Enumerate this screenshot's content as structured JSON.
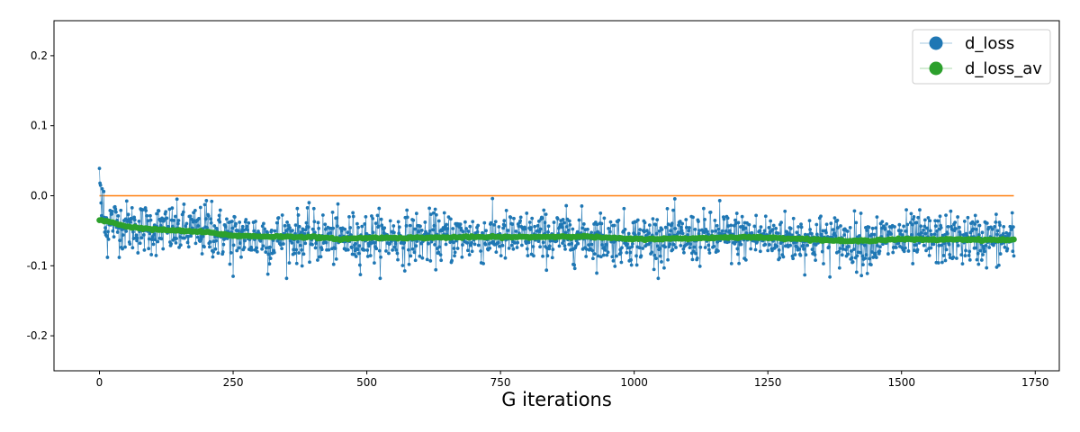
{
  "chart_data": {
    "type": "line",
    "xlabel": "G iterations",
    "ylabel": "",
    "xlim": [
      -85,
      1795
    ],
    "ylim": [
      -0.25,
      0.25
    ],
    "x_ticks": [
      0,
      250,
      500,
      750,
      1000,
      1250,
      1500,
      1750
    ],
    "y_ticks": [
      -0.2,
      -0.1,
      0.0,
      0.1,
      0.2
    ],
    "legend_position": "top-right",
    "grid": false,
    "n_points": 1711,
    "series": [
      {
        "name": "d_loss",
        "color": "#1f77b4",
        "style": "line+markers",
        "mean": -0.062,
        "noise_std": 0.018,
        "highlighted_points": [
          [
            0,
            0.039
          ],
          [
            1,
            0.018
          ],
          [
            2,
            0.015
          ],
          [
            5,
            0.01
          ],
          [
            8,
            0.006
          ],
          [
            10,
            -0.052
          ],
          [
            15,
            -0.088
          ],
          [
            200,
            -0.007
          ],
          [
            210,
            -0.008
          ],
          [
            250,
            -0.115
          ],
          [
            315,
            -0.112
          ],
          [
            1160,
            -0.007
          ],
          [
            1425,
            -0.114
          ]
        ]
      },
      {
        "name": "d_loss_av",
        "color": "#2ca02c",
        "style": "thick-markers",
        "points": [
          [
            0,
            -0.035
          ],
          [
            25,
            -0.038
          ],
          [
            50,
            -0.044
          ],
          [
            100,
            -0.048
          ],
          [
            150,
            -0.05
          ],
          [
            200,
            -0.052
          ],
          [
            250,
            -0.057
          ],
          [
            300,
            -0.058
          ],
          [
            400,
            -0.059
          ],
          [
            450,
            -0.062
          ],
          [
            500,
            -0.06
          ],
          [
            600,
            -0.06
          ],
          [
            700,
            -0.059
          ],
          [
            800,
            -0.059
          ],
          [
            900,
            -0.058
          ],
          [
            1000,
            -0.062
          ],
          [
            1100,
            -0.061
          ],
          [
            1200,
            -0.059
          ],
          [
            1300,
            -0.061
          ],
          [
            1400,
            -0.065
          ],
          [
            1500,
            -0.062
          ],
          [
            1550,
            -0.063
          ],
          [
            1600,
            -0.062
          ],
          [
            1650,
            -0.063
          ],
          [
            1710,
            -0.063
          ]
        ]
      },
      {
        "name": "",
        "color": "#ff7f0e",
        "style": "line",
        "points": [
          [
            0,
            0.0
          ],
          [
            1710,
            0.0
          ]
        ]
      }
    ]
  }
}
